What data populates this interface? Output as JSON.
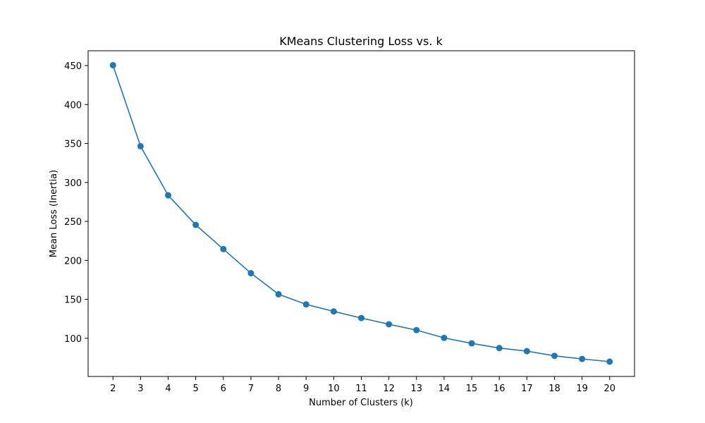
{
  "chart_data": {
    "type": "line",
    "title": "KMeans Clustering Loss vs. k",
    "xlabel": "Number of Clusters (k)",
    "ylabel": "Mean Loss (Inertia)",
    "x": [
      2,
      3,
      4,
      5,
      6,
      7,
      8,
      9,
      10,
      11,
      12,
      13,
      14,
      15,
      16,
      17,
      18,
      19,
      20
    ],
    "series": [
      {
        "values": [
          450.5,
          346.5,
          283.5,
          245.5,
          214.5,
          183.5,
          156.5,
          143.5,
          134.5,
          126,
          118,
          110.5,
          100.5,
          93.5,
          87.5,
          83.5,
          77.5,
          73.5,
          70
        ]
      }
    ],
    "xlim": [
      1.1,
      20.9
    ],
    "ylim": [
      51,
      469
    ],
    "xticks": [
      "2",
      "3",
      "4",
      "5",
      "6",
      "7",
      "8",
      "9",
      "10",
      "11",
      "12",
      "13",
      "14",
      "15",
      "16",
      "17",
      "18",
      "19",
      "20"
    ],
    "yticks": [
      "100",
      "150",
      "200",
      "250",
      "300",
      "350",
      "400",
      "450"
    ],
    "marker": "circle",
    "grid": false,
    "legend": "none",
    "colors": {
      "line": "#1f77b4",
      "marker": "#1f77b4",
      "axes": "#000000",
      "background": "#ffffff"
    }
  }
}
